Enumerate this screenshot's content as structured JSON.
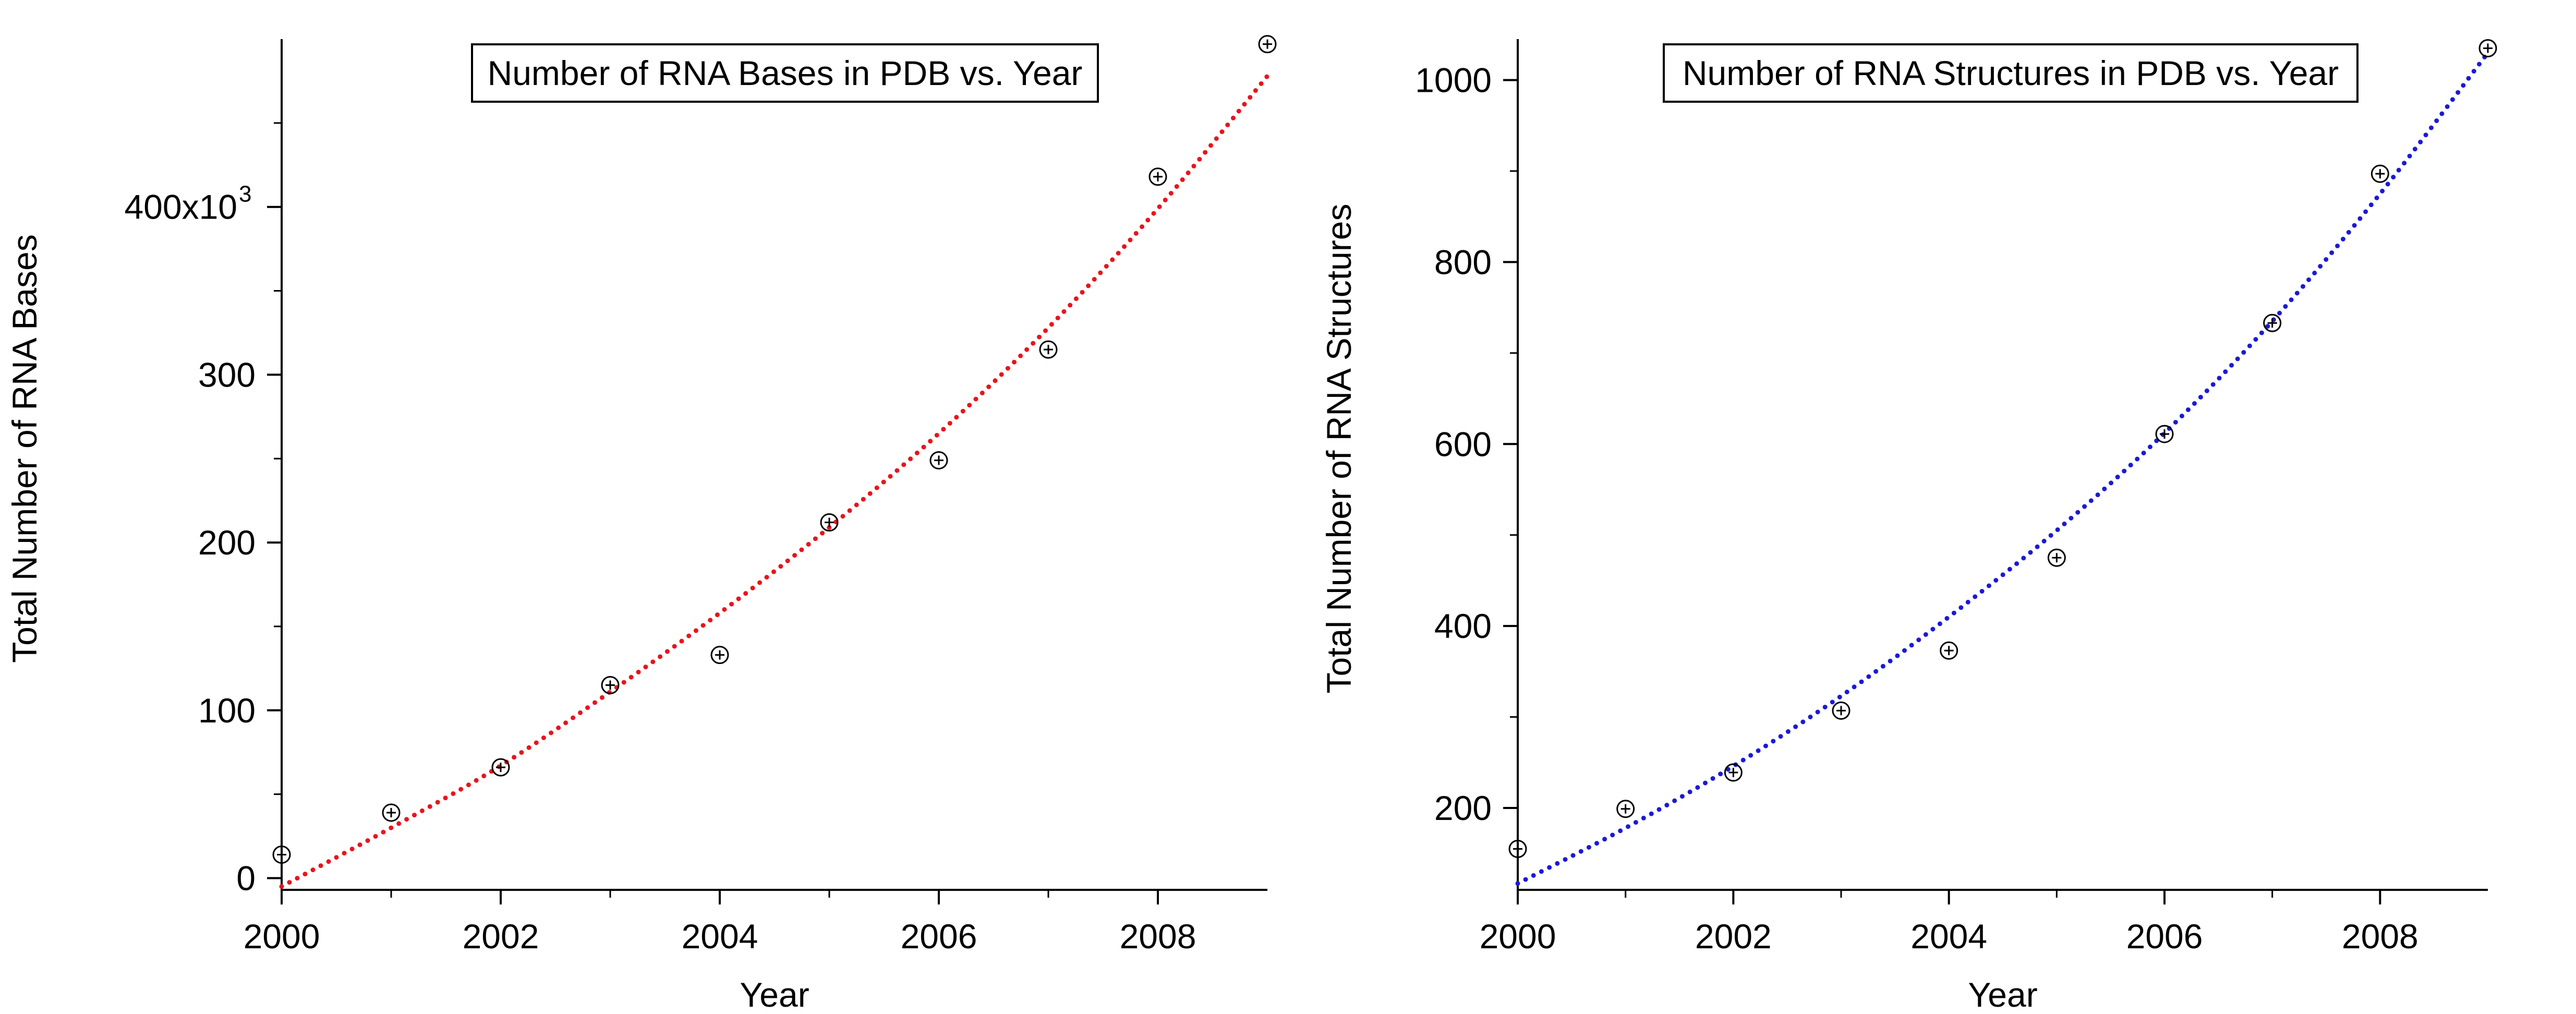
{
  "chart_data": [
    {
      "type": "scatter",
      "title": "Number of RNA Bases in PDB vs. Year",
      "xlabel": "Year",
      "ylabel": "Total Number of RNA Bases",
      "xlim": [
        2000,
        2009
      ],
      "ylim": [
        -7000,
        500000
      ],
      "xticks": [
        2000,
        2002,
        2004,
        2006,
        2008
      ],
      "xtick_labels": [
        "2000",
        "2002",
        "2004",
        "2006",
        "2008"
      ],
      "yticks": [
        0,
        100000,
        200000,
        300000,
        400000
      ],
      "ytick_labels": [
        "0",
        "100",
        "200",
        "300",
        "400x10"
      ],
      "ytick_exponent": "3",
      "grid": false,
      "legend": "none",
      "marker": "circle-plus",
      "series": [
        {
          "x": [
            2000,
            2001,
            2002,
            2003,
            2004,
            2005,
            2006,
            2007,
            2008,
            2009
          ],
          "y": [
            14000,
            39000,
            66000,
            115000,
            133000,
            212000,
            249000,
            315000,
            418000,
            497000
          ]
        }
      ],
      "fit": {
        "style": "dotted",
        "color": "#e8141c",
        "x": [
          2000,
          2001,
          2002,
          2003,
          2004,
          2005,
          2006,
          2007,
          2008,
          2009
        ],
        "y": [
          -5000,
          30000,
          67000,
          111000,
          158000,
          209000,
          265000,
          328000,
          399000,
          478000
        ]
      }
    },
    {
      "type": "scatter",
      "title": "Number of RNA Structures in PDB vs. Year",
      "xlabel": "Year",
      "ylabel": "Total Number of RNA Structures",
      "xlim": [
        2000,
        2009
      ],
      "ylim": [
        110,
        1045
      ],
      "xticks": [
        2000,
        2002,
        2004,
        2006,
        2008
      ],
      "xtick_labels": [
        "2000",
        "2002",
        "2004",
        "2006",
        "2008"
      ],
      "yticks": [
        200,
        400,
        600,
        800,
        1000
      ],
      "ytick_labels": [
        "200",
        "400",
        "600",
        "800",
        "1000"
      ],
      "grid": false,
      "legend": "none",
      "marker": "circle-plus",
      "series": [
        {
          "x": [
            2000,
            2001,
            2002,
            2003,
            2004,
            2005,
            2006,
            2007,
            2008,
            2009
          ],
          "y": [
            155,
            199,
            239,
            307,
            373,
            475,
            611,
            733,
            897,
            1035
          ]
        }
      ],
      "fit": {
        "style": "dotted",
        "color": "#1a1ad6",
        "x": [
          2000,
          2001,
          2002,
          2003,
          2004,
          2005,
          2006,
          2007,
          2008,
          2009
        ],
        "y": [
          117,
          178,
          246,
          323,
          410,
          505,
          612,
          735,
          875,
          1030
        ]
      }
    }
  ]
}
